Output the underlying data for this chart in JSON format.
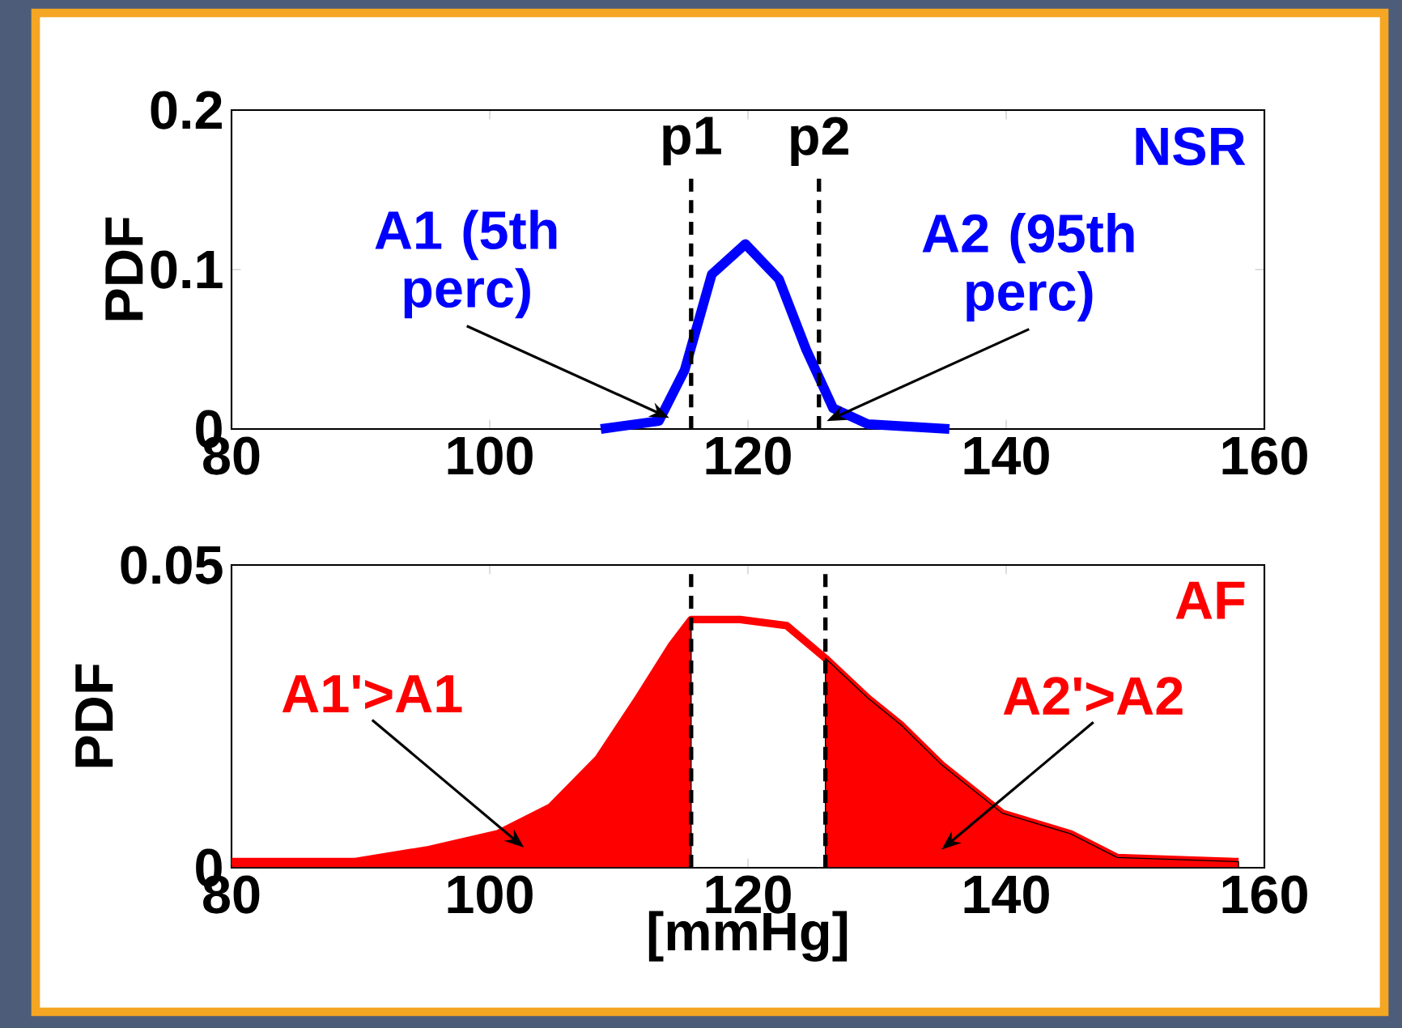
{
  "chart_data": [
    {
      "type": "line",
      "ylabel": "PDF",
      "xlim": [
        80,
        160
      ],
      "ylim": [
        0,
        0.2
      ],
      "xticks": [
        80,
        100,
        120,
        140,
        160
      ],
      "yticks": [
        0,
        0.1,
        0.2
      ],
      "series": [
        {
          "name": "NSR",
          "color": "#0000ff",
          "x": [
            108.6,
            113.1,
            115.1,
            117.2,
            119.8,
            122.4,
            124.5,
            126.6,
            129.3,
            135.6
          ],
          "values": [
            0,
            0.005,
            0.037,
            0.097,
            0.116,
            0.094,
            0.05,
            0.013,
            0.003,
            0
          ]
        }
      ],
      "ref_lines": [
        {
          "axis": "x",
          "value": 115.6,
          "label": "p1",
          "line_style": "dashed",
          "color": "#000000"
        },
        {
          "axis": "x",
          "value": 125.5,
          "label": "p2",
          "line_style": "dashed",
          "color": "#000000"
        }
      ],
      "annotations": [
        {
          "text": "A1 (5th perc)",
          "x": 113.9,
          "y": 0.007
        },
        {
          "text": "A2 (95th perc)",
          "x": 126.1,
          "y": 0.005
        }
      ]
    },
    {
      "type": "area",
      "xlabel": "[mmHg]",
      "ylabel": "PDF",
      "xlim": [
        80,
        160
      ],
      "ylim": [
        0,
        0.05
      ],
      "xticks": [
        80,
        100,
        120,
        140,
        160
      ],
      "yticks": [
        0,
        0.05
      ],
      "series": [
        {
          "type": "area",
          "color": "#ff0000",
          "x": [
            80,
            89.5,
            95.3,
            100.6,
            104.7,
            108.4,
            111.5,
            114.1,
            115.6
          ],
          "values": [
            0.001,
            0.001,
            0.003,
            0.0056,
            0.01,
            0.018,
            0.028,
            0.0368,
            0.041
          ]
        },
        {
          "type": "line",
          "name": "AF",
          "color": "#ff0000",
          "x": [
            80,
            89.5,
            95.3,
            100.6,
            104.7,
            108.4,
            111.5,
            114.1,
            115.6,
            119.4,
            123,
            126,
            129.3,
            131.9,
            135,
            139.7,
            145,
            148.6,
            158
          ],
          "values": [
            0.001,
            0.001,
            0.003,
            0.0056,
            0.01,
            0.018,
            0.028,
            0.0368,
            0.041,
            0.041,
            0.04,
            0.0346,
            0.028,
            0.0235,
            0.017,
            0.009,
            0.0056,
            0.0017,
            0.001
          ]
        },
        {
          "type": "area",
          "color": "#ff0000",
          "x": [
            126,
            129.3,
            131.9,
            135,
            139.7,
            145,
            148.6,
            158
          ],
          "values": [
            0.0346,
            0.028,
            0.0235,
            0.017,
            0.009,
            0.0056,
            0.0017,
            0.001
          ]
        }
      ],
      "ref_lines": [
        {
          "axis": "x",
          "value": 115.6,
          "line_style": "dashed",
          "color": "#000000"
        },
        {
          "axis": "x",
          "value": 126,
          "line_style": "dashed",
          "color": "#000000"
        }
      ],
      "annotations": [
        "A1'>A1",
        "A2'>A2"
      ]
    }
  ]
}
